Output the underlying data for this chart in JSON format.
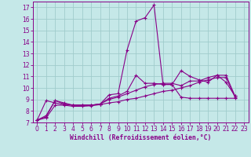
{
  "xlabel": "Windchill (Refroidissement éolien,°C)",
  "bg_color": "#c5e8e8",
  "grid_color": "#a0cccc",
  "line_color": "#880088",
  "xlim_min": -0.5,
  "xlim_max": 23.5,
  "ylim_min": 7,
  "ylim_max": 17.5,
  "xticks": [
    0,
    1,
    2,
    3,
    4,
    5,
    6,
    7,
    8,
    9,
    10,
    11,
    12,
    13,
    14,
    15,
    16,
    17,
    18,
    19,
    20,
    21,
    22,
    23
  ],
  "yticks": [
    7,
    8,
    9,
    10,
    11,
    12,
    13,
    14,
    15,
    16,
    17
  ],
  "series": [
    [
      7.2,
      7.6,
      8.9,
      8.7,
      8.5,
      8.5,
      8.5,
      8.6,
      9.4,
      9.5,
      13.3,
      15.8,
      16.1,
      17.2,
      10.3,
      10.3,
      9.2,
      9.1,
      9.1,
      9.1,
      9.1,
      9.1,
      9.1,
      9.1
    ],
    [
      7.2,
      8.9,
      8.7,
      8.55,
      8.5,
      8.5,
      8.5,
      8.6,
      9.1,
      9.3,
      9.7,
      11.1,
      10.4,
      10.4,
      10.3,
      10.3,
      11.5,
      11.0,
      10.7,
      10.5,
      11.1,
      10.5,
      9.3,
      9.0
    ],
    [
      7.2,
      7.5,
      8.9,
      8.6,
      8.5,
      8.5,
      8.5,
      8.6,
      9.0,
      9.2,
      9.5,
      9.8,
      10.1,
      10.3,
      10.4,
      10.4,
      10.2,
      10.6,
      10.6,
      10.9,
      11.1,
      11.1,
      9.3,
      9.0
    ],
    [
      7.2,
      7.4,
      8.5,
      8.5,
      8.4,
      8.4,
      8.45,
      8.55,
      8.7,
      8.8,
      9.0,
      9.1,
      9.3,
      9.5,
      9.7,
      9.8,
      10.0,
      10.2,
      10.5,
      10.7,
      10.9,
      10.9,
      9.2,
      9.0
    ]
  ]
}
